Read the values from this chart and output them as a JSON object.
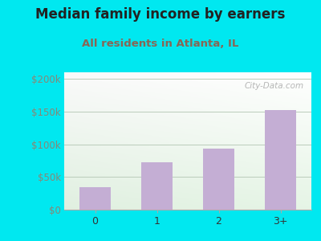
{
  "title": "Median family income by earners",
  "subtitle": "All residents in Atlanta, IL",
  "categories": [
    "0",
    "1",
    "2",
    "3+"
  ],
  "values": [
    35000,
    72000,
    93000,
    152000
  ],
  "bar_color": "#c4aed4",
  "background_outer": "#00e8f0",
  "background_inner_left": "#c8ead8",
  "background_inner_right": "#f0f8f0",
  "background_inner_top": "#e8f4f8",
  "title_fontsize": 12,
  "subtitle_fontsize": 9.5,
  "title_color": "#222222",
  "subtitle_color": "#886655",
  "ylabel_ticks": [
    "$0",
    "$50k",
    "$100k",
    "$150k",
    "$200k"
  ],
  "ytick_values": [
    0,
    50000,
    100000,
    150000,
    200000
  ],
  "ylim": [
    0,
    210000
  ],
  "grid_color": "#bbccbb",
  "tick_label_color": "#888877",
  "xtick_label_color": "#333333",
  "watermark": "City-Data.com"
}
